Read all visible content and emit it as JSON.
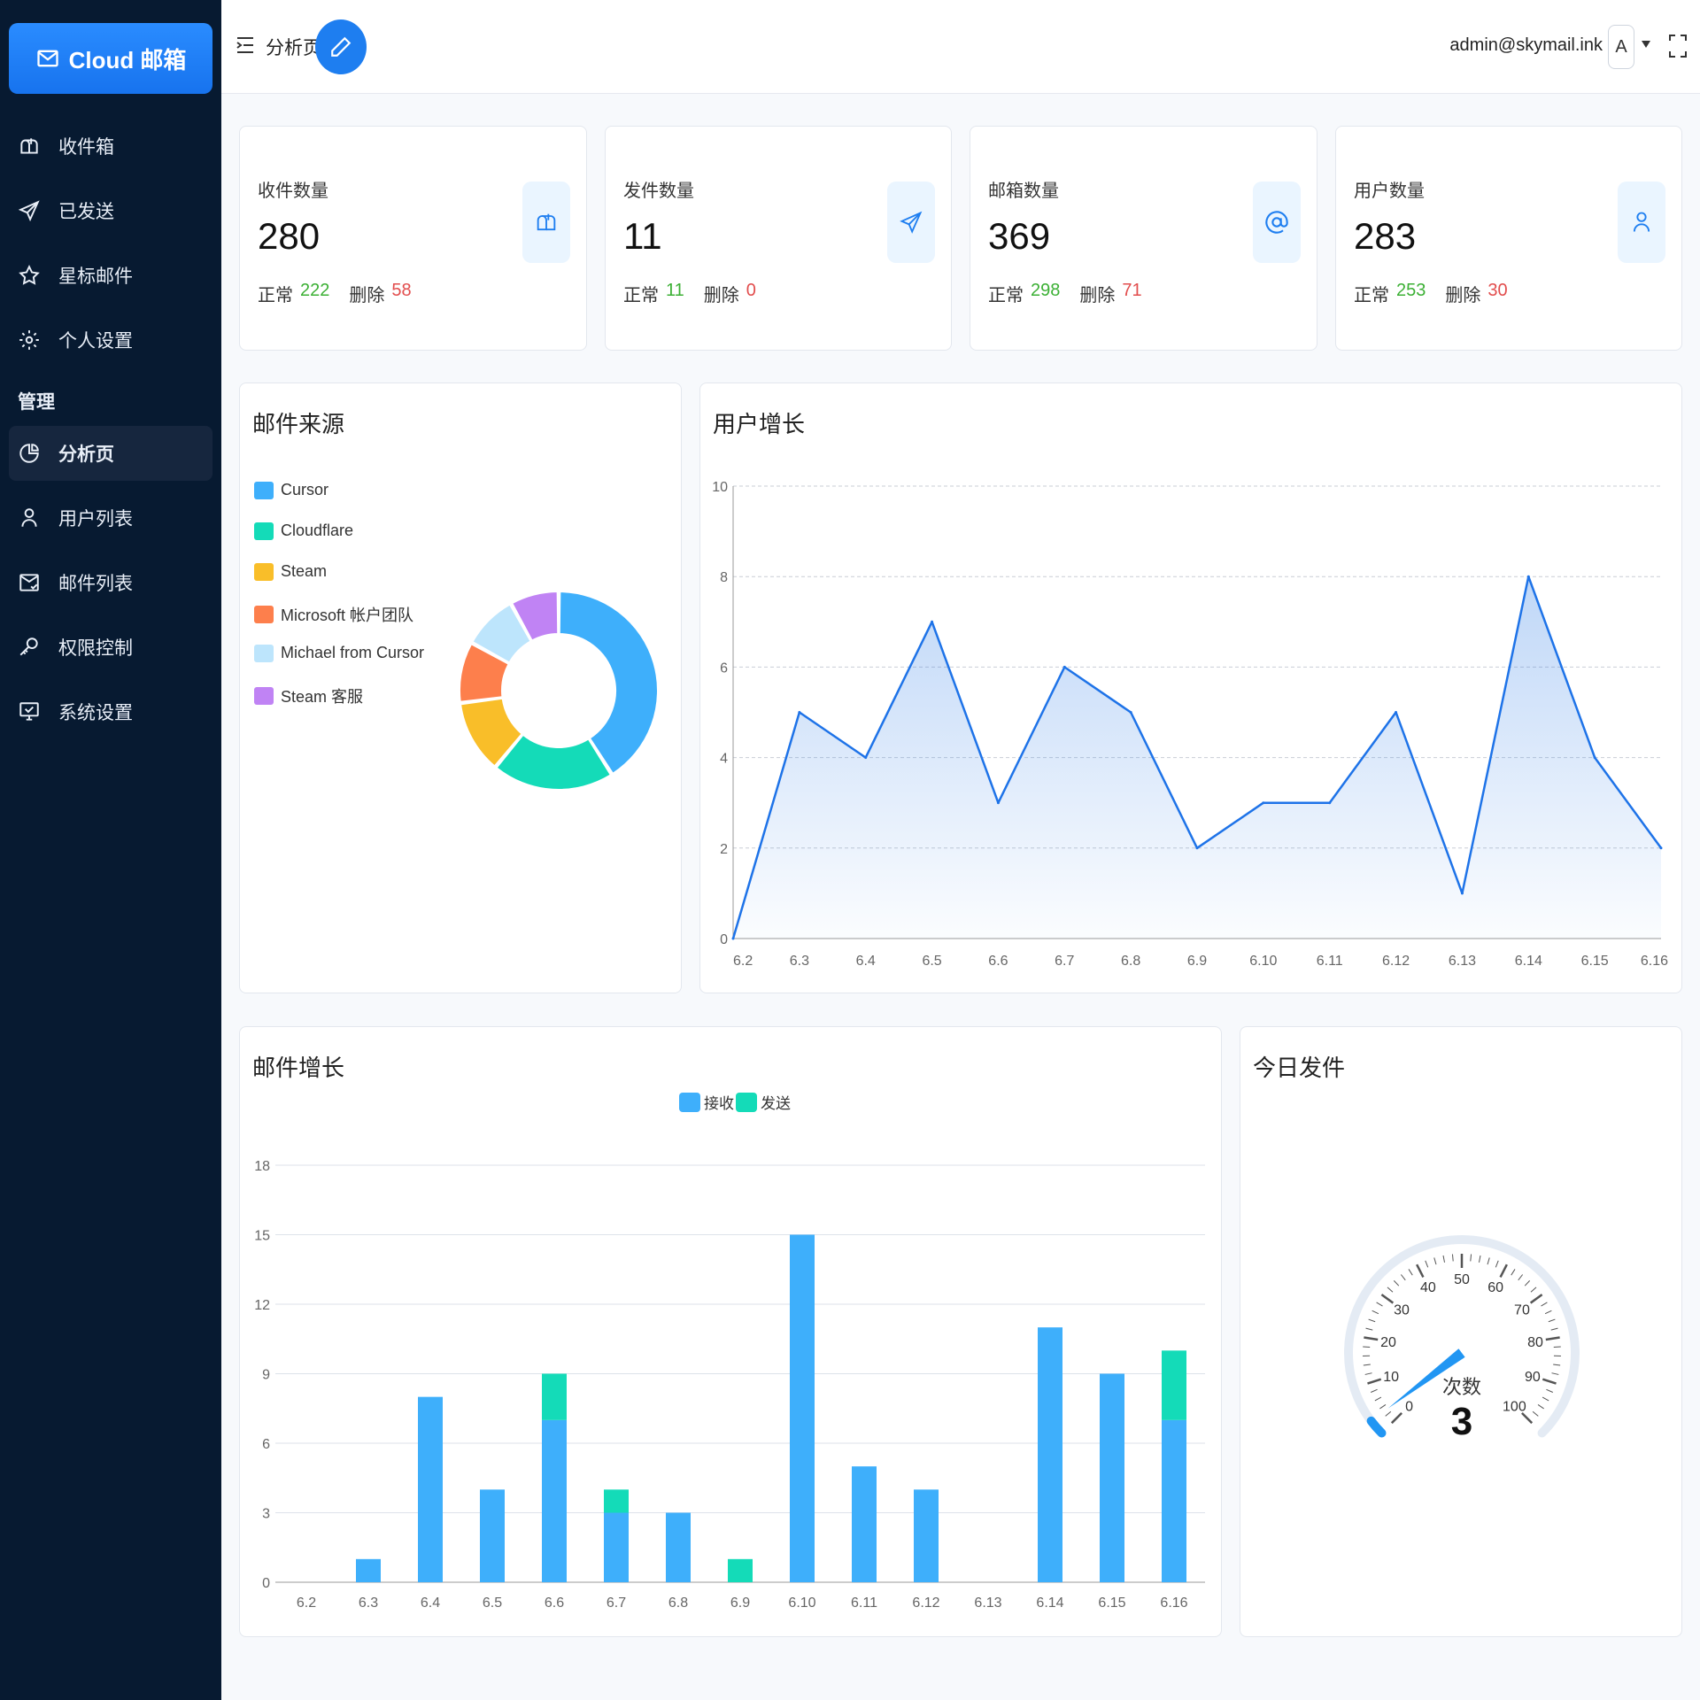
{
  "brand": {
    "text": "Cloud 邮箱"
  },
  "sidebar": {
    "items": [
      {
        "label": "收件箱",
        "icon": "mailbox-icon"
      },
      {
        "label": "已发送",
        "icon": "send-icon"
      },
      {
        "label": "星标邮件",
        "icon": "star-icon"
      },
      {
        "label": "个人设置",
        "icon": "gear-icon"
      }
    ],
    "section_label": "管理",
    "admin_items": [
      {
        "label": "分析页",
        "icon": "pie-chart-icon",
        "active": true
      },
      {
        "label": "用户列表",
        "icon": "user-icon"
      },
      {
        "label": "邮件列表",
        "icon": "mail-list-icon"
      },
      {
        "label": "权限控制",
        "icon": "key-icon"
      },
      {
        "label": "系统设置",
        "icon": "monitor-icon"
      }
    ]
  },
  "header": {
    "title": "分析页",
    "user_email": "admin@skymail.ink",
    "avatar_letter": "A"
  },
  "stats": [
    {
      "label": "收件数量",
      "value": "280",
      "normal_label": "正常",
      "normal": "222",
      "deleted_label": "删除",
      "deleted": "58",
      "icon": "mailbox-icon"
    },
    {
      "label": "发件数量",
      "value": "11",
      "normal_label": "正常",
      "normal": "11",
      "deleted_label": "删除",
      "deleted": "0",
      "icon": "send-icon"
    },
    {
      "label": "邮箱数量",
      "value": "369",
      "normal_label": "正常",
      "normal": "298",
      "deleted_label": "删除",
      "deleted": "71",
      "icon": "at-icon"
    },
    {
      "label": "用户数量",
      "value": "283",
      "normal_label": "正常",
      "normal": "253",
      "deleted_label": "删除",
      "deleted": "30",
      "icon": "user-icon"
    }
  ],
  "colors": {
    "accent": "#1e7ef0",
    "ok": "#3cb035",
    "danger": "#e24d4d",
    "sidebar": "#071a31"
  },
  "chart_data": [
    {
      "type": "pie",
      "title": "邮件来源",
      "legend": "left",
      "slices": [
        {
          "name": "Cursor",
          "value": 41,
          "color": "#3eaffb"
        },
        {
          "name": "Cloudflare",
          "value": 20,
          "color": "#14dbb8"
        },
        {
          "name": "Steam",
          "value": 12,
          "color": "#f9be29"
        },
        {
          "name": "Microsoft 帐户团队",
          "value": 10,
          "color": "#fd7f4c"
        },
        {
          "name": "Michael from Cursor",
          "value": 9,
          "color": "#bde5fc"
        },
        {
          "name": "Steam 客服",
          "value": 8,
          "color": "#c083f4"
        }
      ]
    },
    {
      "type": "area",
      "title": "用户增长",
      "x": [
        "6.2",
        "6.3",
        "6.4",
        "6.5",
        "6.6",
        "6.7",
        "6.8",
        "6.9",
        "6.10",
        "6.11",
        "6.12",
        "6.13",
        "6.14",
        "6.15",
        "6.16"
      ],
      "values": [
        0,
        5,
        4,
        7,
        3,
        6,
        5,
        2,
        3,
        3,
        5,
        1,
        8,
        4,
        2
      ],
      "ylim": [
        0,
        10
      ],
      "yticks": [
        0,
        2,
        4,
        6,
        8,
        10
      ],
      "grid": true,
      "color": "#1e73e8"
    },
    {
      "type": "bar",
      "title": "邮件增长",
      "stacked": true,
      "legend": "top-center",
      "categories": [
        "6.2",
        "6.3",
        "6.4",
        "6.5",
        "6.6",
        "6.7",
        "6.8",
        "6.9",
        "6.10",
        "6.11",
        "6.12",
        "6.13",
        "6.14",
        "6.15",
        "6.16"
      ],
      "series": [
        {
          "name": "接收",
          "values": [
            0,
            1,
            8,
            4,
            7,
            3,
            3,
            0,
            15,
            5,
            4,
            0,
            11,
            9,
            7
          ],
          "color": "#3eaffb"
        },
        {
          "name": "发送",
          "values": [
            0,
            0,
            0,
            0,
            2,
            1,
            0,
            1,
            0,
            0,
            0,
            0,
            0,
            0,
            3
          ],
          "color": "#14dbb8"
        }
      ],
      "ylim": [
        0,
        18
      ],
      "yticks": [
        0,
        3,
        6,
        9,
        12,
        15,
        18
      ],
      "grid": true
    },
    {
      "type": "gauge",
      "title": "今日发件",
      "label": "次数",
      "value": 3,
      "min": 0,
      "max": 100,
      "ticks": [
        "0",
        "10",
        "20",
        "30",
        "40",
        "50",
        "60",
        "70",
        "80",
        "90",
        "100"
      ],
      "color": "#2196f3"
    }
  ]
}
